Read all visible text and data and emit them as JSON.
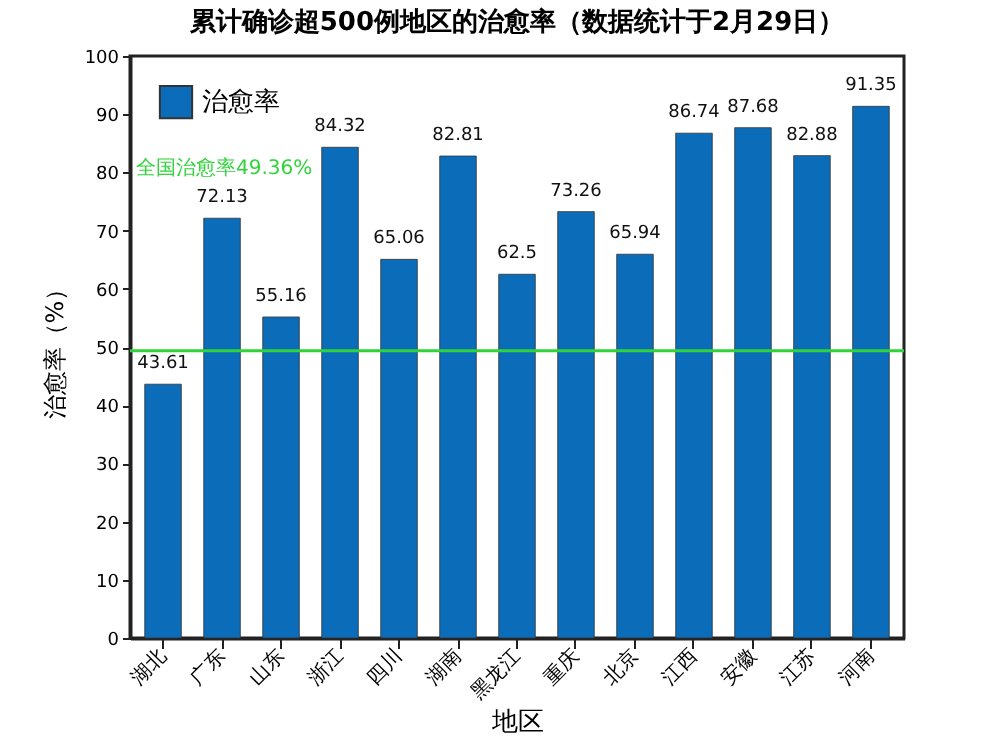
{
  "chart_data": {
    "type": "bar",
    "title": "累计确诊超500例地区的治愈率（数据统计于2月29日）",
    "xlabel": "地区",
    "ylabel": "治愈率（%）",
    "categories": [
      "湖北",
      "广东",
      "山东",
      "浙江",
      "四川",
      "湖南",
      "黑龙江",
      "重庆",
      "北京",
      "江西",
      "安徽",
      "江苏",
      "河南"
    ],
    "series": [
      {
        "name": "治愈率",
        "color": "#0b6dba",
        "values": [
          43.61,
          72.13,
          55.16,
          84.32,
          65.06,
          82.81,
          62.5,
          73.26,
          65.94,
          86.74,
          87.68,
          82.88,
          91.35
        ]
      }
    ],
    "ylim": [
      0,
      100
    ],
    "yticks": [
      0,
      10,
      20,
      30,
      40,
      50,
      60,
      70,
      80,
      90,
      100
    ],
    "ref_lines": [
      {
        "axis": "y",
        "value": 49.36,
        "label": "全国治愈率49.36%",
        "color": "#2fd33a"
      }
    ],
    "data_labels": true,
    "legend": "top left",
    "grid": false
  }
}
